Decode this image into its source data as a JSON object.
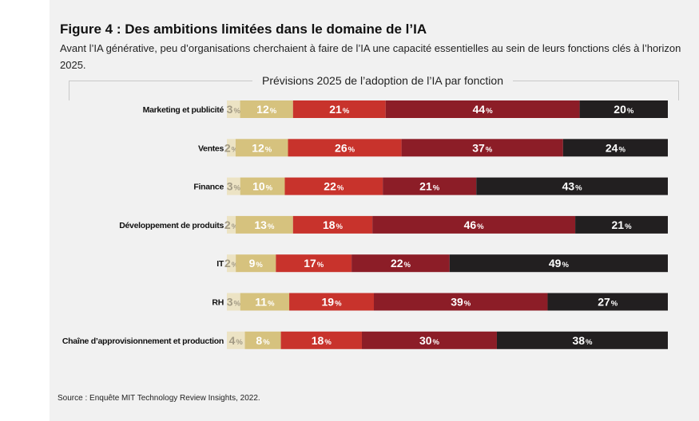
{
  "figure": {
    "title": "Figure 4 : Des ambitions limitées dans le domaine de l’IA",
    "subtitle": "Avant l’IA générative, peu d’organisations cherchaient à faire de l’IA une capacité essentielles au sein de leurs fonctions clés à l’horizon 2025.",
    "source": "Source : Enquête MIT Technology Review Insights, 2022."
  },
  "chart_data": {
    "type": "bar",
    "orientation": "horizontal",
    "stacked": true,
    "title": "Prévisions 2025 de l’adoption de l’IA par fonction",
    "categories": [
      "Marketing et publicité",
      "Ventes",
      "Finance",
      "Développement de produits",
      "IT",
      "RH",
      "Chaîne d’approvisionnement et production"
    ],
    "series": [
      {
        "values": [
          3,
          2,
          3,
          2,
          2,
          3,
          4
        ],
        "color": "#ece3c4",
        "label_color": "#a39b85"
      },
      {
        "values": [
          12,
          12,
          10,
          13,
          9,
          11,
          8
        ],
        "color": "#d6c27e",
        "label_color": "#ffffff"
      },
      {
        "values": [
          21,
          26,
          22,
          18,
          17,
          19,
          18
        ],
        "color": "#c8332c",
        "label_color": "#ffffff"
      },
      {
        "values": [
          44,
          37,
          21,
          46,
          22,
          39,
          30
        ],
        "color": "#8c1d27",
        "label_color": "#ffffff"
      },
      {
        "values": [
          20,
          24,
          43,
          21,
          49,
          27,
          38
        ],
        "color": "#221f20",
        "label_color": "#ffffff"
      }
    ],
    "value_suffix": "%",
    "xlim": [
      0,
      100
    ],
    "grid": false,
    "legend": "none"
  }
}
